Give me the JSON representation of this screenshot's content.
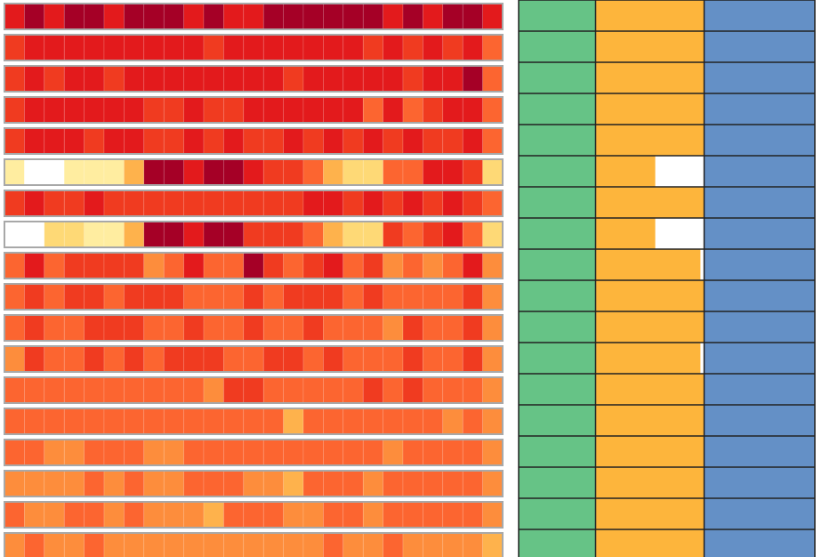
{
  "heatmap": {
    "palette": [
      "#ffffff",
      "#fffbe0",
      "#ffeda0",
      "#fed976",
      "#feb24c",
      "#fd8d3c",
      "#fc6530",
      "#f03b20",
      "#e31a1c",
      "#a50026"
    ],
    "rows": [
      [
        8,
        9,
        8,
        9,
        9,
        8,
        9,
        9,
        9,
        8,
        9,
        8,
        8,
        9,
        9,
        9,
        9,
        9,
        9,
        8,
        9,
        8,
        9,
        9,
        8
      ],
      [
        7,
        8,
        8,
        8,
        8,
        8,
        8,
        8,
        8,
        8,
        7,
        8,
        8,
        8,
        8,
        8,
        8,
        8,
        7,
        8,
        7,
        8,
        7,
        8,
        6
      ],
      [
        7,
        8,
        7,
        8,
        8,
        7,
        8,
        8,
        8,
        8,
        8,
        8,
        8,
        8,
        7,
        8,
        8,
        8,
        8,
        8,
        7,
        8,
        8,
        9,
        6
      ],
      [
        7,
        8,
        8,
        8,
        8,
        8,
        8,
        7,
        7,
        8,
        7,
        7,
        8,
        8,
        8,
        8,
        8,
        8,
        6,
        8,
        6,
        7,
        8,
        8,
        6
      ],
      [
        7,
        8,
        8,
        8,
        7,
        8,
        8,
        7,
        7,
        8,
        7,
        8,
        7,
        7,
        8,
        7,
        8,
        7,
        8,
        7,
        8,
        7,
        7,
        8,
        6
      ],
      [
        2,
        0,
        0,
        2,
        2,
        2,
        4,
        9,
        9,
        8,
        9,
        9,
        8,
        7,
        7,
        6,
        4,
        3,
        3,
        6,
        6,
        8,
        8,
        7,
        3
      ],
      [
        7,
        8,
        7,
        7,
        8,
        7,
        7,
        7,
        7,
        7,
        7,
        7,
        7,
        7,
        7,
        8,
        8,
        7,
        8,
        7,
        8,
        7,
        8,
        7,
        6
      ],
      [
        0,
        0,
        3,
        3,
        2,
        2,
        4,
        9,
        9,
        8,
        9,
        9,
        7,
        7,
        7,
        6,
        4,
        3,
        3,
        7,
        6,
        7,
        8,
        6,
        3
      ],
      [
        6,
        8,
        6,
        7,
        7,
        7,
        7,
        5,
        6,
        8,
        6,
        6,
        9,
        7,
        6,
        7,
        8,
        6,
        7,
        5,
        6,
        5,
        6,
        8,
        5
      ],
      [
        6,
        7,
        6,
        7,
        7,
        6,
        7,
        7,
        7,
        6,
        6,
        6,
        7,
        6,
        7,
        7,
        7,
        6,
        7,
        6,
        6,
        6,
        6,
        7,
        5
      ],
      [
        6,
        7,
        6,
        6,
        7,
        7,
        7,
        6,
        6,
        7,
        6,
        6,
        7,
        6,
        6,
        7,
        6,
        6,
        6,
        5,
        7,
        6,
        6,
        7,
        5
      ],
      [
        5,
        7,
        6,
        6,
        7,
        6,
        7,
        6,
        7,
        7,
        7,
        6,
        6,
        7,
        7,
        6,
        7,
        6,
        6,
        6,
        7,
        6,
        6,
        7,
        5
      ],
      [
        6,
        6,
        6,
        6,
        6,
        6,
        6,
        6,
        6,
        6,
        5,
        7,
        7,
        6,
        6,
        6,
        6,
        6,
        7,
        6,
        7,
        6,
        6,
        6,
        5
      ],
      [
        6,
        6,
        6,
        6,
        6,
        6,
        6,
        6,
        6,
        6,
        6,
        6,
        6,
        6,
        4,
        6,
        6,
        6,
        6,
        6,
        6,
        6,
        5,
        6,
        5
      ],
      [
        6,
        6,
        5,
        5,
        6,
        6,
        6,
        5,
        5,
        6,
        6,
        6,
        6,
        6,
        6,
        6,
        6,
        6,
        6,
        5,
        6,
        6,
        6,
        6,
        5
      ],
      [
        5,
        5,
        5,
        5,
        6,
        5,
        6,
        5,
        5,
        6,
        6,
        6,
        5,
        5,
        4,
        6,
        6,
        6,
        5,
        6,
        6,
        6,
        6,
        6,
        5
      ],
      [
        6,
        5,
        5,
        6,
        6,
        5,
        6,
        5,
        5,
        5,
        4,
        6,
        6,
        6,
        5,
        5,
        6,
        6,
        5,
        6,
        6,
        6,
        6,
        6,
        5
      ],
      [
        5,
        6,
        5,
        5,
        6,
        5,
        5,
        5,
        5,
        5,
        5,
        5,
        5,
        5,
        5,
        5,
        6,
        5,
        5,
        6,
        5,
        5,
        5,
        5,
        4
      ]
    ]
  },
  "side_panel": {
    "colors": [
      "#66c386",
      "#fdb53c",
      "#6490c6"
    ],
    "middle_fill": [
      1,
      1,
      1,
      1,
      1,
      0.55,
      1,
      0.55,
      0.97,
      1,
      1,
      0.97,
      1,
      1,
      1,
      1,
      1,
      1
    ]
  }
}
